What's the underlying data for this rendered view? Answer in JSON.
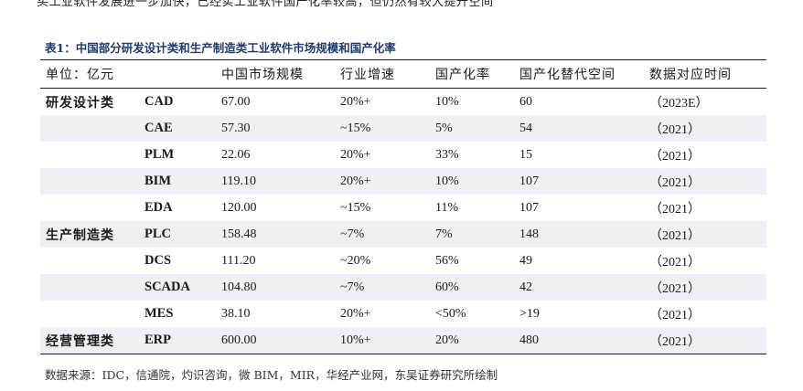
{
  "top_text": "买工业软件发展进一步加快，已经实工业软件国产化率较高，但仍然有较大提升空间",
  "caption": "表1：中国部分研发设计类和生产制造类工业软件市场规模和国产化率",
  "headers": [
    "单位：亿元",
    "",
    "中国市场规模",
    "行业增速",
    "国产化率",
    "国产化替代空间",
    "数据对应时间"
  ],
  "rows": [
    {
      "category": "研发设计类",
      "software": "CAD",
      "market": "67.00",
      "growth": "20%+",
      "rate": "10%",
      "space": "60",
      "time": "（2023E）"
    },
    {
      "category": "",
      "software": "CAE",
      "market": "57.30",
      "growth": "~15%",
      "rate": "5%",
      "space": "54",
      "time": "（2021）"
    },
    {
      "category": "",
      "software": "PLM",
      "market": "22.06",
      "growth": "20%+",
      "rate": "33%",
      "space": "15",
      "time": "（2021）"
    },
    {
      "category": "",
      "software": "BIM",
      "market": "119.10",
      "growth": "20%+",
      "rate": "10%",
      "space": "107",
      "time": "（2021）"
    },
    {
      "category": "",
      "software": "EDA",
      "market": "120.00",
      "growth": "~15%",
      "rate": "11%",
      "space": "107",
      "time": "（2021）"
    },
    {
      "category": "生产制造类",
      "software": "PLC",
      "market": "158.48",
      "growth": "~7%",
      "rate": "7%",
      "space": "148",
      "time": "（2021）"
    },
    {
      "category": "",
      "software": "DCS",
      "market": "111.20",
      "growth": "~20%",
      "rate": "56%",
      "space": "49",
      "time": "（2021）"
    },
    {
      "category": "",
      "software": "SCADA",
      "market": "104.80",
      "growth": "~7%",
      "rate": "60%",
      "space": "42",
      "time": "（2021）"
    },
    {
      "category": "",
      "software": "MES",
      "market": "38.10",
      "growth": "20%+",
      "rate": "<50%",
      "space": ">19",
      "time": "（2021）"
    },
    {
      "category": "经营管理类",
      "software": "ERP",
      "market": "600.00",
      "growth": "10%+",
      "rate": "20%",
      "space": "480",
      "time": "（2021）"
    }
  ],
  "source": "数据来源：IDC，信通院，灼识咨询，微 BIM，MIR，华经产业网，东吴证券研究所绘制"
}
